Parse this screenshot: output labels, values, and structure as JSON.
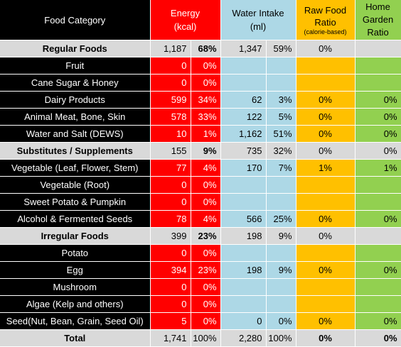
{
  "headers": {
    "category": "Food Category",
    "energy_1": "Energy",
    "energy_2": "(kcal)",
    "water_1": "Water Intake",
    "water_2": "(ml)",
    "raw_1": "Raw Food",
    "raw_2": "Ratio",
    "raw_3": "(calorie-based)",
    "garden_1": "Home",
    "garden_2": "Garden",
    "garden_3": "Ratio"
  },
  "rows": [
    {
      "type": "group",
      "category": "Regular Foods",
      "energy": "1,187",
      "energy_pct": "68%",
      "water": "1,347",
      "water_pct": "59%",
      "raw": "0%",
      "garden": ""
    },
    {
      "type": "item",
      "category": "Fruit",
      "energy": "0",
      "energy_pct": "0%",
      "water": "",
      "water_pct": "",
      "raw": "",
      "garden": ""
    },
    {
      "type": "item",
      "category": "Cane Sugar & Honey",
      "energy": "0",
      "energy_pct": "0%",
      "water": "",
      "water_pct": "",
      "raw": "",
      "garden": ""
    },
    {
      "type": "item",
      "category": "Dairy Products",
      "energy": "599",
      "energy_pct": "34%",
      "water": "62",
      "water_pct": "3%",
      "raw": "0%",
      "garden": "0%"
    },
    {
      "type": "item",
      "category": "Animal Meat, Bone, Skin",
      "energy": "578",
      "energy_pct": "33%",
      "water": "122",
      "water_pct": "5%",
      "raw": "0%",
      "garden": "0%"
    },
    {
      "type": "item",
      "category": "Water and Salt (DEWS)",
      "energy": "10",
      "energy_pct": "1%",
      "water": "1,162",
      "water_pct": "51%",
      "raw": "0%",
      "garden": "0%"
    },
    {
      "type": "group",
      "category": "Substitutes / Supplements",
      "energy": "155",
      "energy_pct": "9%",
      "water": "735",
      "water_pct": "32%",
      "raw": "0%",
      "garden": "0%"
    },
    {
      "type": "item",
      "category": "Vegetable (Leaf, Flower, Stem)",
      "energy": "77",
      "energy_pct": "4%",
      "water": "170",
      "water_pct": "7%",
      "raw": "1%",
      "garden": "1%"
    },
    {
      "type": "item",
      "category": "Vegetable (Root)",
      "energy": "0",
      "energy_pct": "0%",
      "water": "",
      "water_pct": "",
      "raw": "",
      "garden": ""
    },
    {
      "type": "item",
      "category": "Sweet Potato & Pumpkin",
      "energy": "0",
      "energy_pct": "0%",
      "water": "",
      "water_pct": "",
      "raw": "",
      "garden": ""
    },
    {
      "type": "item",
      "category": "Alcohol & Fermented Seeds",
      "energy": "78",
      "energy_pct": "4%",
      "water": "566",
      "water_pct": "25%",
      "raw": "0%",
      "garden": "0%"
    },
    {
      "type": "group",
      "category": "Irregular Foods",
      "energy": "399",
      "energy_pct": "23%",
      "water": "198",
      "water_pct": "9%",
      "raw": "0%",
      "garden": ""
    },
    {
      "type": "item",
      "category": "Potato",
      "energy": "0",
      "energy_pct": "0%",
      "water": "",
      "water_pct": "",
      "raw": "",
      "garden": ""
    },
    {
      "type": "item",
      "category": "Egg",
      "energy": "394",
      "energy_pct": "23%",
      "water": "198",
      "water_pct": "9%",
      "raw": "0%",
      "garden": "0%"
    },
    {
      "type": "item",
      "category": "Mushroom",
      "energy": "0",
      "energy_pct": "0%",
      "water": "",
      "water_pct": "",
      "raw": "",
      "garden": ""
    },
    {
      "type": "item",
      "category": "Algae (Kelp and others)",
      "energy": "0",
      "energy_pct": "0%",
      "water": "",
      "water_pct": "",
      "raw": "",
      "garden": ""
    },
    {
      "type": "item",
      "category": "Seed(Nut, Bean, Grain, Seed Oil)",
      "energy": "5",
      "energy_pct": "0%",
      "water": "0",
      "water_pct": "0%",
      "raw": "0%",
      "garden": "0%"
    },
    {
      "type": "total",
      "category": "Total",
      "energy": "1,741",
      "energy_pct": "100%",
      "water": "2,280",
      "water_pct": "100%",
      "raw": "0%",
      "garden": "0%"
    }
  ]
}
